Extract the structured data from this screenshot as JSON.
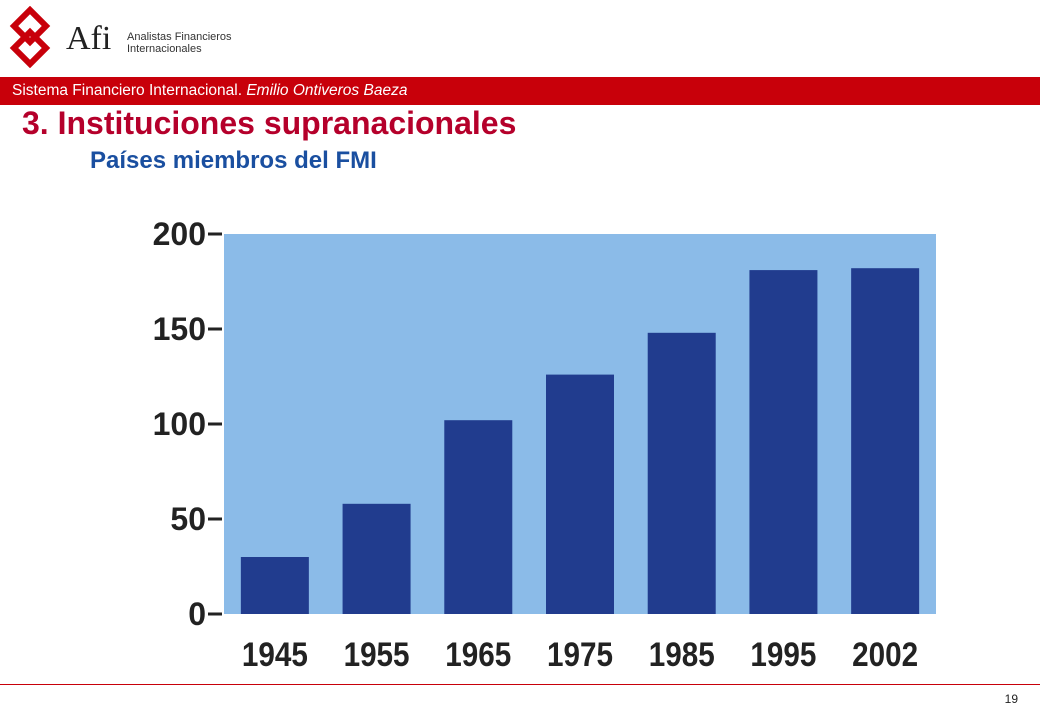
{
  "header": {
    "logo_text": "Afi",
    "logo_sub_line1": "Analistas Financieros",
    "logo_sub_line2": "Internacionales",
    "bar_text": "Sistema Financiero Internacional. ",
    "bar_author": "Emilio Ontiveros Baeza"
  },
  "slide": {
    "title": "3. Instituciones supranacionales",
    "subtitle": "Países miembros del FMI",
    "page_number": "19"
  },
  "colors": {
    "accent_red": "#c8000a",
    "title_red": "#b5002b",
    "subtitle_blue": "#1a4fa0",
    "plot_background": "#8bbbe8",
    "bar_fill": "#213c8e"
  },
  "chart_data": {
    "type": "bar",
    "categories": [
      "1945",
      "1955",
      "1965",
      "1975",
      "1985",
      "1995",
      "2002"
    ],
    "values": [
      30,
      58,
      102,
      126,
      148,
      181,
      182
    ],
    "yticks": [
      "0",
      "50",
      "100",
      "150",
      "200"
    ],
    "ylim": [
      0,
      200
    ],
    "grid": false,
    "legend": "none"
  }
}
